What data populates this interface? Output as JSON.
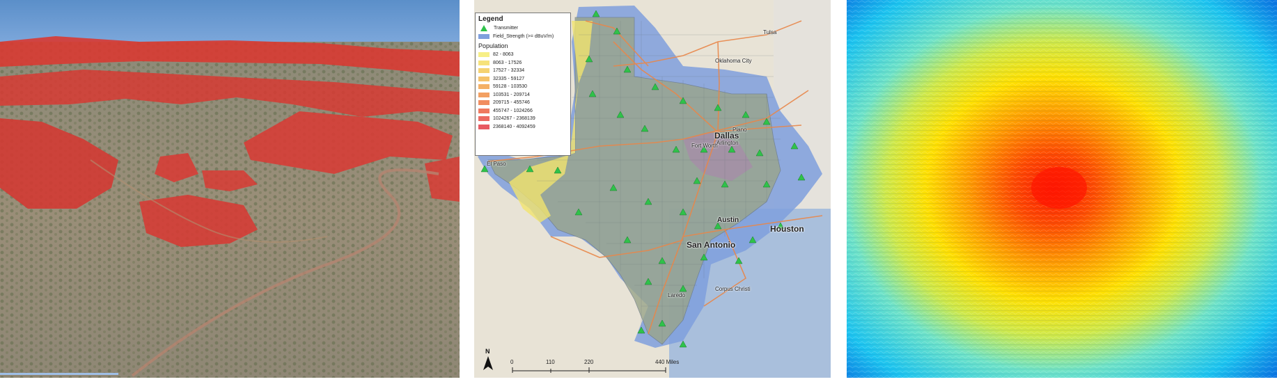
{
  "panel_3d": {
    "name": "3D terrain coverage view"
  },
  "map": {
    "legend": {
      "title": "Legend",
      "transmitter_label": "Transmitter",
      "field_strength_label": "Field_Strength (>=  dBuV/m)",
      "population_title": "Population",
      "population_classes": [
        {
          "label": "82 - 8063",
          "color": "#f7ef86"
        },
        {
          "label": "8063 - 17526",
          "color": "#f6e27a"
        },
        {
          "label": "17527 - 32334",
          "color": "#f5d271"
        },
        {
          "label": "32335 - 59127",
          "color": "#f5c26a"
        },
        {
          "label": "59128 - 103530",
          "color": "#f4b066"
        },
        {
          "label": "103531 - 209714",
          "color": "#f3a062"
        },
        {
          "label": "209715 - 455746",
          "color": "#f18d60"
        },
        {
          "label": "455747 - 1024266",
          "color": "#ef7a60"
        },
        {
          "label": "1024267 - 2368139",
          "color": "#ec6a62"
        },
        {
          "label": "2368140 - 4092459",
          "color": "#e85a62"
        }
      ]
    },
    "cities": {
      "dallas": "Dallas",
      "fort_worth": "Fort Worth",
      "arlington": "Arlington",
      "plano": "Plano",
      "austin": "Austin",
      "houston": "Houston",
      "san_antonio": "San Antonio",
      "laredo": "Laredo",
      "corpus_christi": "Corpus Christi",
      "el_paso": "El Paso",
      "oklahoma_city": "Oklahoma City",
      "tulsa": "Tulsa"
    },
    "scale": {
      "ticks": [
        "0",
        "110",
        "220",
        "440 Miles"
      ]
    },
    "north_label": "N",
    "colors": {
      "coverage": "#7f9fdd",
      "transmitter": "#2fc24a",
      "roads": "#e8874a"
    }
  },
  "heatmap": {
    "name": "Signal strength raster"
  }
}
